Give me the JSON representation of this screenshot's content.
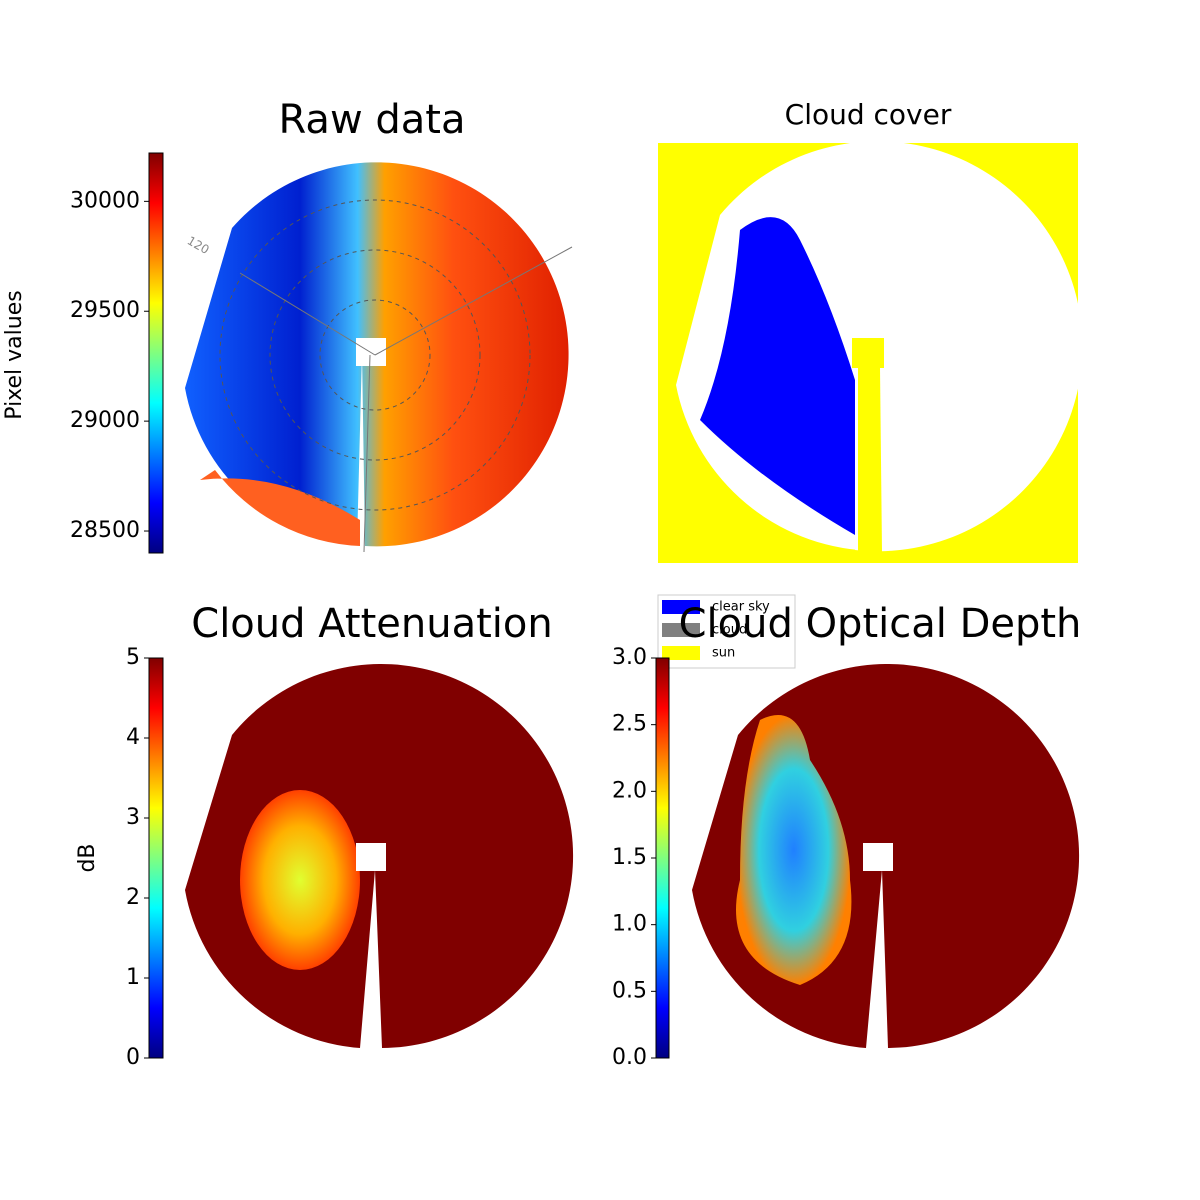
{
  "chart_data": [
    {
      "type": "image",
      "title": "Raw data",
      "polar_label": "120",
      "colorbar": {
        "label": "Pixel values",
        "lim": [
          28400,
          30220
        ],
        "ticks": [
          28500,
          29000,
          29500,
          30000
        ]
      }
    },
    {
      "type": "image",
      "title": "Cloud cover",
      "legend": [
        {
          "name": "clear sky",
          "color": "#0000ff"
        },
        {
          "name": "cloud",
          "color": "#808080"
        },
        {
          "name": "sun",
          "color": "#ffff00"
        }
      ]
    },
    {
      "type": "image",
      "title": "Cloud Attenuation",
      "colorbar": {
        "label": "dB",
        "lim": [
          0,
          5
        ],
        "ticks": [
          0,
          1,
          2,
          3,
          4,
          5
        ]
      }
    },
    {
      "type": "image",
      "title": "Cloud Optical Depth",
      "colorbar": {
        "lim": [
          0,
          3
        ],
        "ticks": [
          {
            "value": 0,
            "label": "0.0"
          },
          0.5,
          {
            "value": 1,
            "label": "1.0"
          },
          1.5,
          {
            "value": 2,
            "label": "2.0"
          },
          2.5,
          {
            "value": 3,
            "label": "3.0"
          }
        ]
      }
    }
  ]
}
